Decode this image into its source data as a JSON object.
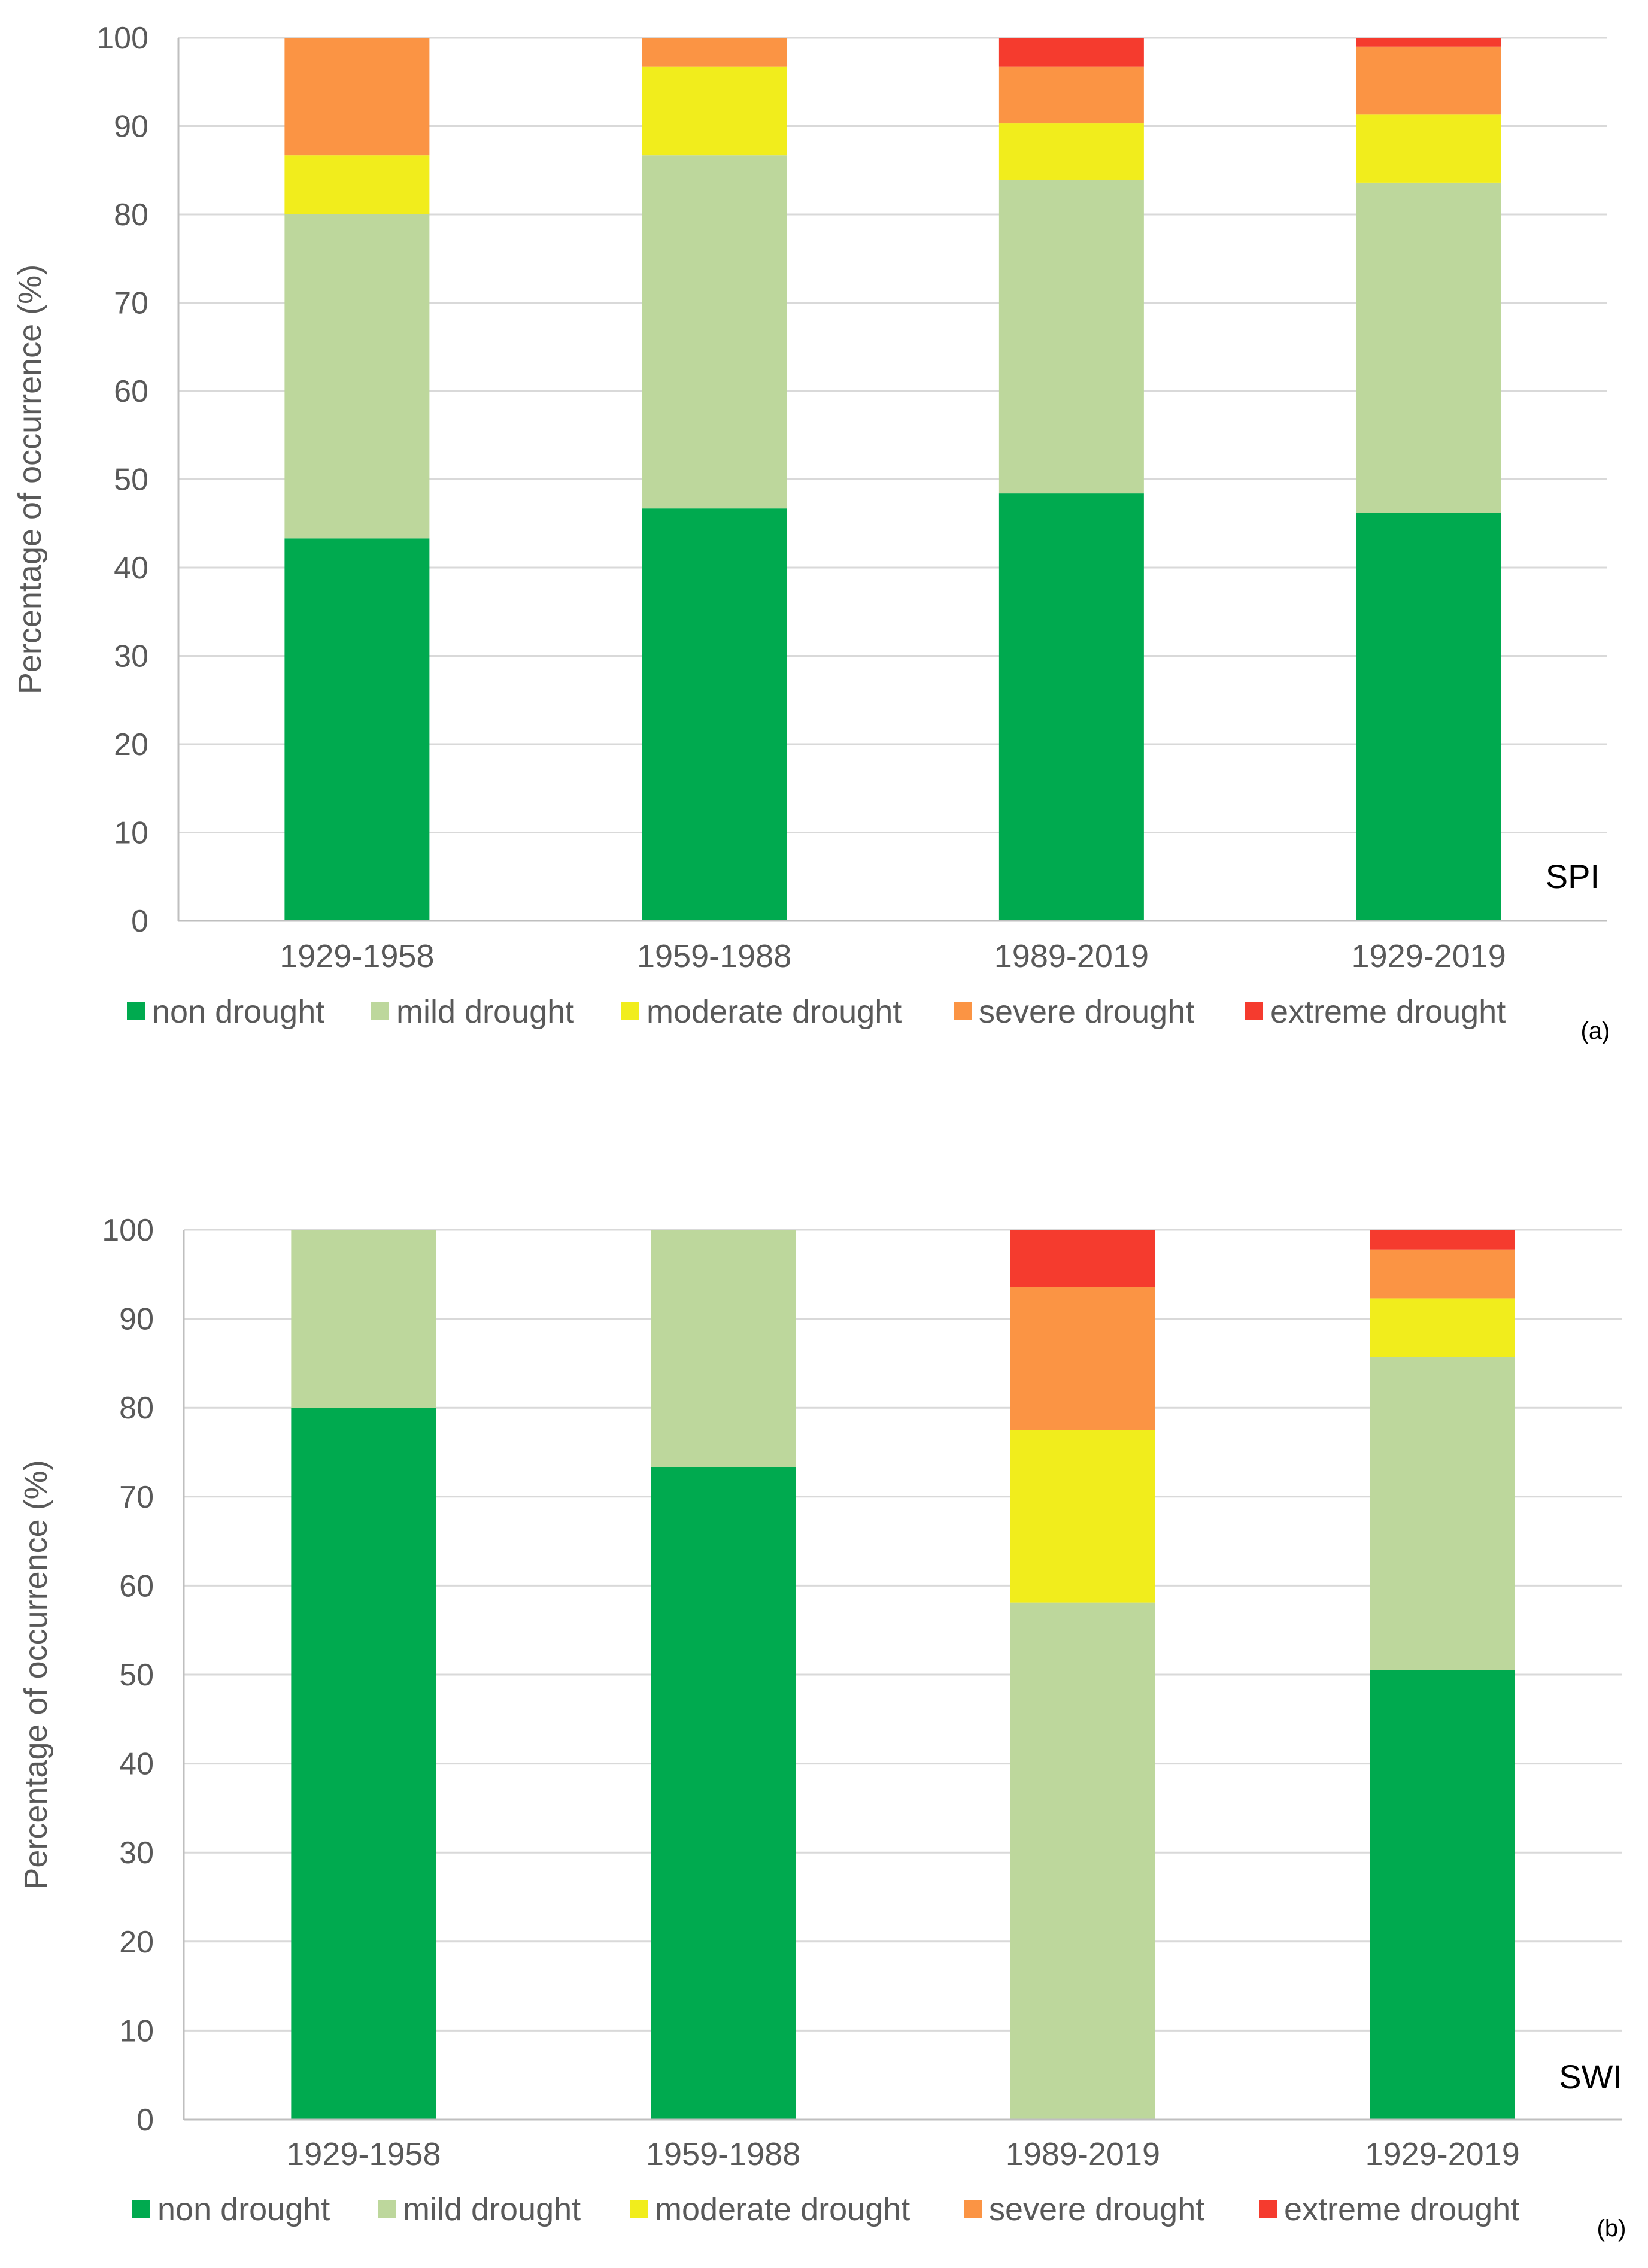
{
  "chart_data": [
    {
      "type": "bar",
      "stacked": true,
      "panel_label": "(a)",
      "index_label": "SPI",
      "ylabel": "Percentage of occurrence (%)",
      "ylim": [
        0,
        100
      ],
      "yticks": [
        0,
        10,
        20,
        30,
        40,
        50,
        60,
        70,
        80,
        90,
        100
      ],
      "grid": true,
      "legend_position": "bottom",
      "categories": [
        "1929-1958",
        "1959-1988",
        "1989-2019",
        "1929-2019"
      ],
      "series": [
        {
          "name": "non drought",
          "color": "#00AA4F",
          "values": [
            43.3,
            46.7,
            48.4,
            46.2
          ]
        },
        {
          "name": "mild drought",
          "color": "#BDD79C",
          "values": [
            36.7,
            40.0,
            35.5,
            37.4
          ]
        },
        {
          "name": "moderate drought",
          "color": "#F1ED1C",
          "values": [
            6.7,
            10.0,
            6.4,
            7.7
          ]
        },
        {
          "name": "severe drought",
          "color": "#FB9444",
          "values": [
            13.3,
            3.3,
            6.4,
            7.7
          ]
        },
        {
          "name": "extreme drought",
          "color": "#F53B2E",
          "values": [
            0.0,
            0.0,
            3.3,
            1.0
          ]
        }
      ]
    },
    {
      "type": "bar",
      "stacked": true,
      "panel_label": "(b)",
      "index_label": "SWI",
      "ylabel": "Percentage of occurrence (%)",
      "ylim": [
        0,
        100
      ],
      "yticks": [
        0,
        10,
        20,
        30,
        40,
        50,
        60,
        70,
        80,
        90,
        100
      ],
      "grid": true,
      "legend_position": "bottom",
      "categories": [
        "1929-1958",
        "1959-1988",
        "1989-2019",
        "1929-2019"
      ],
      "series": [
        {
          "name": "non drought",
          "color": "#00AA4F",
          "values": [
            80.0,
            73.3,
            0.0,
            50.5
          ]
        },
        {
          "name": "mild drought",
          "color": "#BDD79C",
          "values": [
            20.0,
            26.7,
            58.1,
            35.2
          ]
        },
        {
          "name": "moderate drought",
          "color": "#F1ED1C",
          "values": [
            0.0,
            0.0,
            19.4,
            6.6
          ]
        },
        {
          "name": "severe drought",
          "color": "#FB9444",
          "values": [
            0.0,
            0.0,
            16.1,
            5.5
          ]
        },
        {
          "name": "extreme drought",
          "color": "#F53B2E",
          "values": [
            0.0,
            0.0,
            6.4,
            2.2
          ]
        }
      ]
    }
  ]
}
